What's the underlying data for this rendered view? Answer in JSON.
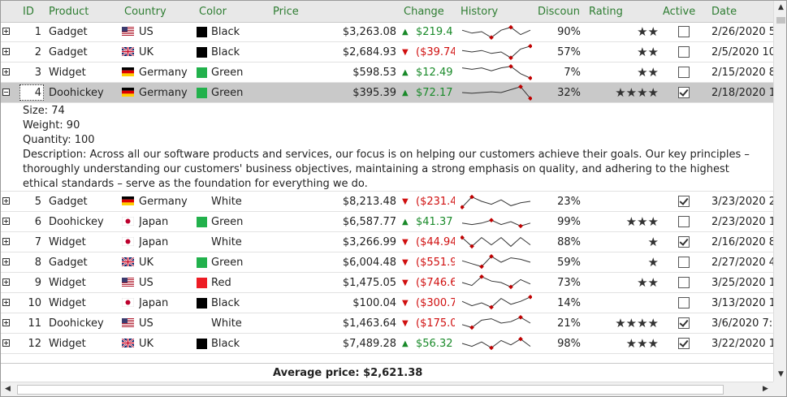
{
  "columns": [
    "ID",
    "Product",
    "Country",
    "Color",
    "Price",
    "Change",
    "History",
    "Discoun",
    "Rating",
    "Active",
    "Date"
  ],
  "rows": [
    {
      "id": "1",
      "product": "Gadget",
      "country": "US",
      "country_flag": "us-flag",
      "color_name": "Black",
      "color_hex": "#000000",
      "price": "$3,263.08",
      "change": "$219.4",
      "change_dir": "up",
      "history": [
        0.6,
        0.4,
        0.5,
        0.1,
        0.6,
        0.8,
        0.3,
        0.6
      ],
      "discount": "90%",
      "rating": "★★",
      "active": false,
      "date": "2/26/2020 5:"
    },
    {
      "id": "2",
      "product": "Gadget",
      "country": "UK",
      "country_flag": "uk-flag",
      "color_name": "Black",
      "color_hex": "#000000",
      "price": "$2,684.93",
      "change": "($39.74",
      "change_dir": "down",
      "history": [
        0.6,
        0.5,
        0.6,
        0.4,
        0.5,
        0.1,
        0.7,
        0.9
      ],
      "discount": "57%",
      "rating": "★★",
      "active": false,
      "date": "2/5/2020 10:"
    },
    {
      "id": "3",
      "product": "Widget",
      "country": "Germany",
      "country_flag": "germany-flag",
      "color_name": "Green",
      "color_hex": "#22b14c",
      "price": "$598.53",
      "change": "$12.49",
      "change_dir": "up",
      "history": [
        0.8,
        0.7,
        0.8,
        0.6,
        0.8,
        0.9,
        0.4,
        0.1
      ],
      "discount": "7%",
      "rating": "★★",
      "active": false,
      "date": "2/15/2020 8:"
    },
    {
      "id": "4",
      "product": "Doohickey",
      "country": "Germany",
      "country_flag": "germany-flag",
      "color_name": "Green",
      "color_hex": "#22b14c",
      "price": "$395.39",
      "change": "$72.17",
      "change_dir": "up",
      "history": [
        0.5,
        0.45,
        0.5,
        0.55,
        0.5,
        0.7,
        0.9,
        0.1
      ],
      "discount": "32%",
      "rating": "★★★★",
      "active": true,
      "date": "2/18/2020 12",
      "selected": true,
      "expanded": true
    },
    {
      "id": "5",
      "product": "Gadget",
      "country": "Germany",
      "country_flag": "germany-flag",
      "color_name": "White",
      "color_hex": "#ffffff",
      "price": "$8,213.48",
      "change": "($231.4",
      "change_dir": "down",
      "history": [
        0.1,
        0.8,
        0.5,
        0.3,
        0.6,
        0.2,
        0.4,
        0.5
      ],
      "discount": "23%",
      "rating": "",
      "active": true,
      "date": "3/23/2020 2:"
    },
    {
      "id": "6",
      "product": "Doohickey",
      "country": "Japan",
      "country_flag": "japan-flag",
      "color_name": "Green",
      "color_hex": "#22b14c",
      "price": "$6,587.77",
      "change": "$41.37",
      "change_dir": "up",
      "history": [
        0.4,
        0.3,
        0.4,
        0.6,
        0.3,
        0.5,
        0.2,
        0.4
      ],
      "discount": "99%",
      "rating": "★★★",
      "active": false,
      "date": "2/23/2020 12"
    },
    {
      "id": "7",
      "product": "Widget",
      "country": "Japan",
      "country_flag": "japan-flag",
      "color_name": "White",
      "color_hex": "#ffffff",
      "price": "$3,266.99",
      "change": "($44.94",
      "change_dir": "down",
      "history": [
        0.8,
        0.2,
        0.8,
        0.3,
        0.8,
        0.2,
        0.8,
        0.3
      ],
      "discount": "88%",
      "rating": "★",
      "active": true,
      "date": "2/16/2020 8:"
    },
    {
      "id": "8",
      "product": "Gadget",
      "country": "UK",
      "country_flag": "uk-flag",
      "color_name": "Green",
      "color_hex": "#22b14c",
      "price": "$6,004.48",
      "change": "($551.9",
      "change_dir": "down",
      "history": [
        0.6,
        0.4,
        0.2,
        0.9,
        0.5,
        0.8,
        0.7,
        0.5
      ],
      "discount": "59%",
      "rating": "★",
      "active": false,
      "date": "2/27/2020 4:"
    },
    {
      "id": "9",
      "product": "Widget",
      "country": "US",
      "country_flag": "us-flag",
      "color_name": "Red",
      "color_hex": "#ed1c24",
      "price": "$1,475.05",
      "change": "($746.6",
      "change_dir": "down",
      "history": [
        0.5,
        0.3,
        0.9,
        0.6,
        0.5,
        0.2,
        0.7,
        0.4
      ],
      "discount": "73%",
      "rating": "★★",
      "active": false,
      "date": "3/25/2020 1:"
    },
    {
      "id": "10",
      "product": "Widget",
      "country": "Japan",
      "country_flag": "japan-flag",
      "color_name": "Black",
      "color_hex": "#000000",
      "price": "$100.04",
      "change": "($300.7",
      "change_dir": "down",
      "history": [
        0.6,
        0.3,
        0.5,
        0.2,
        0.8,
        0.4,
        0.6,
        0.9
      ],
      "discount": "14%",
      "rating": "",
      "active": false,
      "date": "3/13/2020 12"
    },
    {
      "id": "11",
      "product": "Doohickey",
      "country": "US",
      "country_flag": "us-flag",
      "color_name": "White",
      "color_hex": "#ffffff",
      "price": "$1,463.64",
      "change": "($175.0",
      "change_dir": "down",
      "history": [
        0.4,
        0.2,
        0.7,
        0.8,
        0.5,
        0.6,
        0.9,
        0.5
      ],
      "discount": "21%",
      "rating": "★★★★",
      "active": true,
      "date": "3/6/2020 7:0"
    },
    {
      "id": "12",
      "product": "Widget",
      "country": "UK",
      "country_flag": "uk-flag",
      "color_name": "Black",
      "color_hex": "#000000",
      "price": "$7,489.28",
      "change": "$56.32",
      "change_dir": "up",
      "history": [
        0.5,
        0.3,
        0.6,
        0.2,
        0.7,
        0.4,
        0.8,
        0.3
      ],
      "discount": "98%",
      "rating": "★★★",
      "active": true,
      "date": "3/22/2020 10"
    }
  ],
  "detail": {
    "size": "Size: 74",
    "weight": "Weight: 90",
    "quantity": "Quantity: 100",
    "description": "Description: Across all our software products and services, our focus is on helping our customers achieve their goals. Our key principles – thoroughly understanding our customers' business objectives, maintaining a strong emphasis on quality, and adhering to the highest ethical standards – serve as the foundation for everything we do."
  },
  "footer": {
    "average": "Average price: $2,621.38"
  },
  "colors": {
    "header_text": "#2e7d32",
    "up": "#1a8a2a",
    "down": "#d01010",
    "spark_marker": "#c00000",
    "selected_row": "#c9c9c9"
  }
}
